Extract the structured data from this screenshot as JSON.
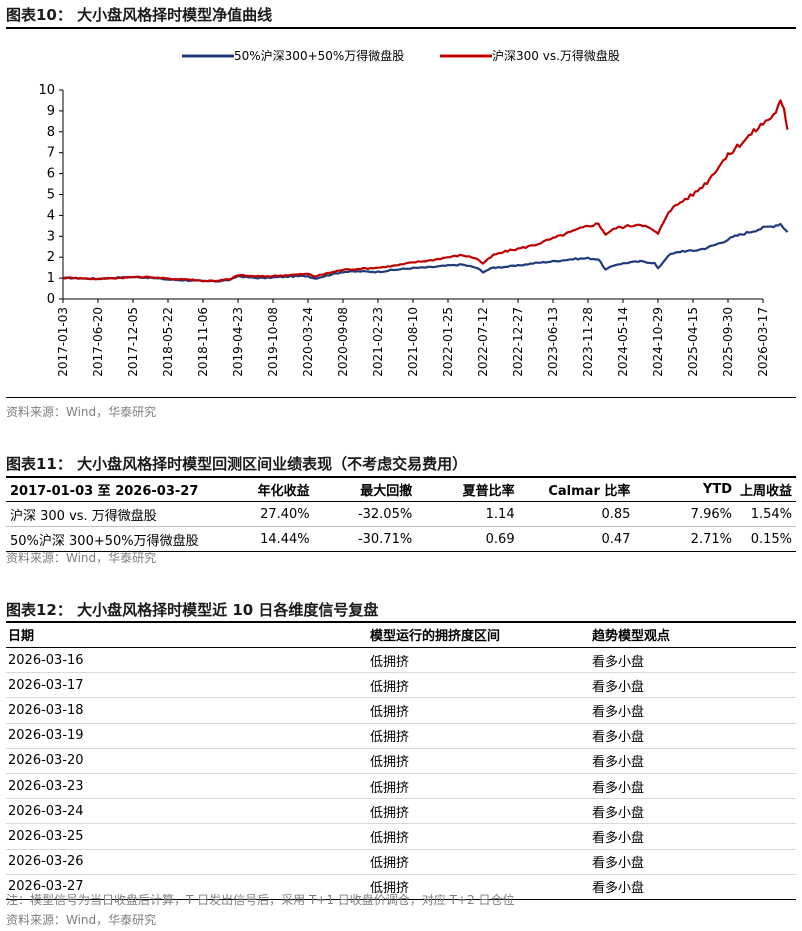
{
  "figure10": {
    "title": "图表10：  大小盘风格择时模型净值曲线",
    "source": "资料来源：Wind，华泰研究"
  },
  "colors": {
    "navy": "#1f3a7a",
    "red": "#c00000"
  },
  "chart_data": {
    "type": "line",
    "title": "",
    "xlabel": "",
    "ylabel": "",
    "ylim": [
      0,
      10
    ],
    "yticks": [
      "0",
      "1",
      "2",
      "3",
      "4",
      "5",
      "6",
      "7",
      "8",
      "9",
      "10"
    ],
    "categories": [
      "2017-01-03",
      "2017-06-20",
      "2017-12-05",
      "2018-05-22",
      "2018-11-06",
      "2019-04-23",
      "2019-10-08",
      "2020-03-24",
      "2020-09-08",
      "2021-02-23",
      "2021-08-10",
      "2022-01-25",
      "2022-07-12",
      "2022-12-27",
      "2023-06-13",
      "2023-11-28",
      "2024-05-14",
      "2024-10-29",
      "2025-04-15",
      "2025-09-30",
      "2026-03-17"
    ],
    "legend_position": "top",
    "series": [
      {
        "name": "50%沪深300+50%万得微盘股",
        "color": "#1f3a7a",
        "points": [
          [
            0,
            1.0
          ],
          [
            0.3,
            1.0
          ],
          [
            0.7,
            0.98
          ],
          [
            1.0,
            0.97
          ],
          [
            1.5,
            1.02
          ],
          [
            2.0,
            1.05
          ],
          [
            2.5,
            1.02
          ],
          [
            3.0,
            0.93
          ],
          [
            3.5,
            0.9
          ],
          [
            4.0,
            0.85
          ],
          [
            4.4,
            0.85
          ],
          [
            4.8,
            0.92
          ],
          [
            5.0,
            1.1
          ],
          [
            5.3,
            1.03
          ],
          [
            5.7,
            1.0
          ],
          [
            6.0,
            1.03
          ],
          [
            6.5,
            1.08
          ],
          [
            7.0,
            1.1
          ],
          [
            7.2,
            0.98
          ],
          [
            7.6,
            1.15
          ],
          [
            8.0,
            1.3
          ],
          [
            8.5,
            1.32
          ],
          [
            9.0,
            1.3
          ],
          [
            9.5,
            1.4
          ],
          [
            10.0,
            1.48
          ],
          [
            10.5,
            1.52
          ],
          [
            11.0,
            1.6
          ],
          [
            11.4,
            1.65
          ],
          [
            11.8,
            1.5
          ],
          [
            12.0,
            1.3
          ],
          [
            12.3,
            1.5
          ],
          [
            12.7,
            1.55
          ],
          [
            13.0,
            1.6
          ],
          [
            13.5,
            1.72
          ],
          [
            14.0,
            1.8
          ],
          [
            14.5,
            1.9
          ],
          [
            15.0,
            1.95
          ],
          [
            15.3,
            1.9
          ],
          [
            15.5,
            1.4
          ],
          [
            15.8,
            1.65
          ],
          [
            16.2,
            1.75
          ],
          [
            16.5,
            1.8
          ],
          [
            16.9,
            1.72
          ],
          [
            17.0,
            1.45
          ],
          [
            17.3,
            2.1
          ],
          [
            17.7,
            2.3
          ],
          [
            18.0,
            2.3
          ],
          [
            18.4,
            2.45
          ],
          [
            18.8,
            2.7
          ],
          [
            19.2,
            3.0
          ],
          [
            19.6,
            3.2
          ],
          [
            20.0,
            3.4
          ],
          [
            20.3,
            3.5
          ],
          [
            20.5,
            3.6
          ],
          [
            20.6,
            3.4
          ],
          [
            20.7,
            3.2
          ]
        ]
      },
      {
        "name": "沪深300 vs.万得微盘股",
        "color": "#c00000",
        "points": [
          [
            0,
            1.0
          ],
          [
            0.3,
            1.02
          ],
          [
            0.7,
            0.97
          ],
          [
            1.0,
            0.96
          ],
          [
            1.5,
            1.0
          ],
          [
            2.0,
            1.05
          ],
          [
            2.5,
            1.05
          ],
          [
            3.0,
            0.97
          ],
          [
            3.5,
            0.95
          ],
          [
            4.0,
            0.87
          ],
          [
            4.4,
            0.88
          ],
          [
            4.8,
            0.95
          ],
          [
            5.0,
            1.15
          ],
          [
            5.3,
            1.1
          ],
          [
            5.7,
            1.08
          ],
          [
            6.0,
            1.1
          ],
          [
            6.5,
            1.15
          ],
          [
            7.0,
            1.2
          ],
          [
            7.2,
            1.08
          ],
          [
            7.6,
            1.25
          ],
          [
            8.0,
            1.4
          ],
          [
            8.5,
            1.45
          ],
          [
            9.0,
            1.5
          ],
          [
            9.5,
            1.6
          ],
          [
            10.0,
            1.75
          ],
          [
            10.5,
            1.85
          ],
          [
            11.0,
            2.0
          ],
          [
            11.4,
            2.1
          ],
          [
            11.8,
            1.95
          ],
          [
            12.0,
            1.7
          ],
          [
            12.3,
            2.1
          ],
          [
            12.7,
            2.3
          ],
          [
            13.0,
            2.4
          ],
          [
            13.5,
            2.6
          ],
          [
            14.0,
            2.9
          ],
          [
            14.5,
            3.2
          ],
          [
            15.0,
            3.5
          ],
          [
            15.3,
            3.6
          ],
          [
            15.5,
            3.1
          ],
          [
            15.8,
            3.4
          ],
          [
            16.2,
            3.5
          ],
          [
            16.5,
            3.6
          ],
          [
            16.9,
            3.25
          ],
          [
            17.0,
            3.1
          ],
          [
            17.3,
            4.2
          ],
          [
            17.7,
            4.7
          ],
          [
            18.0,
            5.0
          ],
          [
            18.4,
            5.6
          ],
          [
            18.8,
            6.5
          ],
          [
            19.2,
            7.2
          ],
          [
            19.6,
            7.8
          ],
          [
            20.0,
            8.4
          ],
          [
            20.3,
            8.8
          ],
          [
            20.5,
            9.4
          ],
          [
            20.6,
            9.0
          ],
          [
            20.7,
            8.1
          ]
        ]
      }
    ]
  },
  "figure11": {
    "title": "图表11：  大小盘风格择时模型回测区间业绩表现（不考虑交易费用）",
    "headers": [
      "2017-01-03 至 2026-03-27",
      "年化收益",
      "最大回撤",
      "夏普比率",
      "Calmar 比率",
      "YTD",
      "上周收益"
    ],
    "rows": [
      [
        "沪深 300 vs. 万得微盘股",
        "27.40%",
        "-32.05%",
        "1.14",
        "0.85",
        "7.96%",
        "1.54%"
      ],
      [
        "50%沪深 300+50%万得微盘股",
        "14.44%",
        "-30.71%",
        "0.69",
        "0.47",
        "2.71%",
        "0.15%"
      ]
    ],
    "source": "资料来源：Wind，华泰研究"
  },
  "figure12": {
    "title": "图表12：  大小盘风格择时模型近 10 日各维度信号复盘",
    "headers": [
      "日期",
      "模型运行的拥挤度区间",
      "趋势模型观点"
    ],
    "rows": [
      [
        "2026-03-16",
        "低拥挤",
        "看多小盘"
      ],
      [
        "2026-03-17",
        "低拥挤",
        "看多小盘"
      ],
      [
        "2026-03-18",
        "低拥挤",
        "看多小盘"
      ],
      [
        "2026-03-19",
        "低拥挤",
        "看多小盘"
      ],
      [
        "2026-03-20",
        "低拥挤",
        "看多小盘"
      ],
      [
        "2026-03-23",
        "低拥挤",
        "看多小盘"
      ],
      [
        "2026-03-24",
        "低拥挤",
        "看多小盘"
      ],
      [
        "2026-03-25",
        "低拥挤",
        "看多小盘"
      ],
      [
        "2026-03-26",
        "低拥挤",
        "看多小盘"
      ],
      [
        "2026-03-27",
        "低拥挤",
        "看多小盘"
      ]
    ],
    "note": "注：模型信号为当日收盘后计算，T 日发出信号后，采用 T+1 日收盘价调仓，对应 T+2 日仓位",
    "source": "资料来源：Wind，华泰研究"
  }
}
